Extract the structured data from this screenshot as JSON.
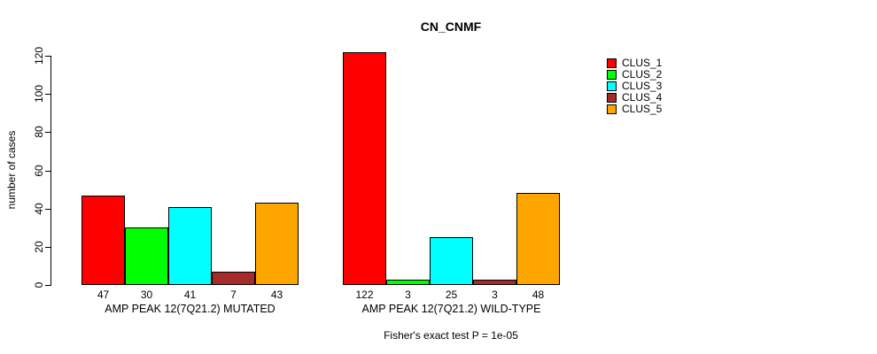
{
  "chart_data": {
    "type": "bar",
    "title": "CN_CNMF",
    "ylabel": "number of cases",
    "ylim": [
      0,
      120
    ],
    "yticks": [
      0,
      20,
      40,
      60,
      80,
      100,
      120
    ],
    "grid": false,
    "legend_position": "right",
    "series": [
      {
        "name": "CLUS_1",
        "color": "#FF0000"
      },
      {
        "name": "CLUS_2",
        "color": "#00FF00"
      },
      {
        "name": "CLUS_3",
        "color": "#00FFFF"
      },
      {
        "name": "CLUS_4",
        "color": "#A52A2A"
      },
      {
        "name": "CLUS_5",
        "color": "#FFA500"
      }
    ],
    "groups": [
      {
        "label": "AMP PEAK 12(7Q21.2) MUTATED",
        "values": [
          47,
          30,
          41,
          7,
          43
        ]
      },
      {
        "label": "AMP PEAK 12(7Q21.2) WILD-TYPE",
        "values": [
          122,
          3,
          25,
          3,
          48
        ]
      }
    ],
    "footnote": "Fisher's exact test P = 1e-05"
  }
}
